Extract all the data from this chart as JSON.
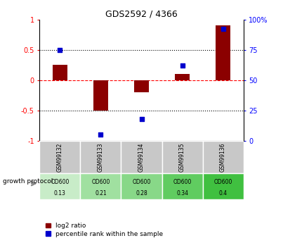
{
  "title": "GDS2592 / 4366",
  "samples": [
    "GSM99132",
    "GSM99133",
    "GSM99134",
    "GSM99135",
    "GSM99136"
  ],
  "log2_ratio": [
    0.25,
    -0.5,
    -0.2,
    0.1,
    0.9
  ],
  "percentile_rank": [
    75,
    5,
    18,
    62,
    92
  ],
  "ylim_left": [
    -1,
    1
  ],
  "ylim_right": [
    0,
    100
  ],
  "yticks_left": [
    -1,
    -0.5,
    0,
    0.5,
    1
  ],
  "yticks_right": [
    0,
    25,
    50,
    75,
    100
  ],
  "ytick_labels_left": [
    "-1",
    "-0.5",
    "0",
    "0.5",
    "1"
  ],
  "ytick_labels_right": [
    "0",
    "25",
    "50",
    "75",
    "100%"
  ],
  "hlines": [
    {
      "val": 0.5,
      "style": "dotted",
      "color": "black"
    },
    {
      "val": 0.0,
      "style": "dashed",
      "color": "red"
    },
    {
      "val": -0.5,
      "style": "dotted",
      "color": "black"
    }
  ],
  "bar_color": "#8B0000",
  "scatter_color": "#0000CD",
  "bar_width": 0.35,
  "growth_protocol_label": "growth protocol",
  "protocol_top": [
    "OD600",
    "OD600",
    "OD600",
    "OD600",
    "OD600"
  ],
  "protocol_bottom": [
    "0.13",
    "0.21",
    "0.28",
    "0.34",
    "0.4"
  ],
  "protocol_colors": [
    "#c8ecc8",
    "#a0e0a0",
    "#88d888",
    "#60cc60",
    "#40c040"
  ],
  "legend_red_label": "log2 ratio",
  "legend_blue_label": "percentile rank within the sample",
  "table_bg": "#c8c8c8"
}
